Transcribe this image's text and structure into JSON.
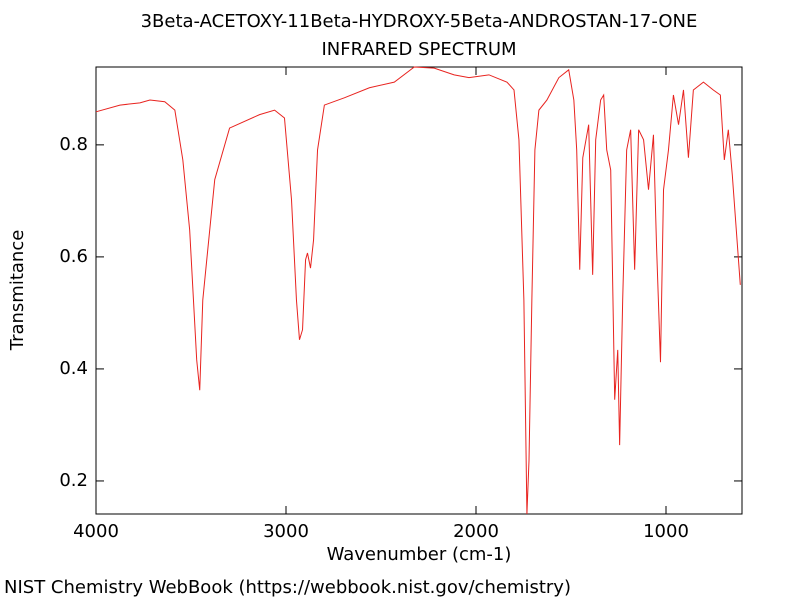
{
  "chart_data": {
    "type": "line",
    "title": "3Beta-ACETOXY-11Beta-HYDROXY-5Beta-ANDROSTAN-17-ONE",
    "subtitle": "INFRARED SPECTRUM",
    "x_label": "Wavenumber (cm-1)",
    "y_label": "Transmitance",
    "xlim": [
      4000,
      600
    ],
    "ylim": [
      0.141,
      0.939
    ],
    "xticks": [
      4000,
      3000,
      2000,
      1000
    ],
    "yticks": [
      0.2,
      0.4,
      0.6,
      0.8
    ],
    "series": [
      {
        "color": "#e8231f",
        "x": [
          4000,
          3874,
          3769,
          3716,
          3638,
          3585,
          3543,
          3507,
          3470,
          3454,
          3438,
          3417,
          3375,
          3297,
          3139,
          3060,
          3008,
          2971,
          2945,
          2929,
          2913,
          2897,
          2887,
          2871,
          2855,
          2834,
          2798,
          2693,
          2561,
          2430,
          2325,
          2220,
          2115,
          2037,
          1932,
          1837,
          1800,
          1774,
          1748,
          1732,
          1721,
          1706,
          1690,
          1669,
          1627,
          1564,
          1512,
          1485,
          1470,
          1454,
          1438,
          1407,
          1386,
          1370,
          1344,
          1328,
          1312,
          1291,
          1270,
          1254,
          1244,
          1228,
          1207,
          1186,
          1165,
          1144,
          1118,
          1092,
          1066,
          1050,
          1029,
          1013,
          987,
          961,
          934,
          908,
          882,
          856,
          803,
          751,
          714,
          693,
          672,
          651,
          609
        ],
        "values": [
          0.859,
          0.871,
          0.875,
          0.88,
          0.877,
          0.862,
          0.773,
          0.648,
          0.416,
          0.362,
          0.523,
          0.595,
          0.738,
          0.83,
          0.854,
          0.862,
          0.848,
          0.702,
          0.523,
          0.452,
          0.47,
          0.595,
          0.607,
          0.58,
          0.63,
          0.791,
          0.871,
          0.884,
          0.902,
          0.912,
          0.939,
          0.937,
          0.925,
          0.92,
          0.925,
          0.912,
          0.898,
          0.809,
          0.523,
          0.141,
          0.237,
          0.523,
          0.791,
          0.862,
          0.88,
          0.92,
          0.934,
          0.88,
          0.791,
          0.577,
          0.777,
          0.836,
          0.568,
          0.809,
          0.88,
          0.889,
          0.791,
          0.755,
          0.345,
          0.434,
          0.264,
          0.523,
          0.791,
          0.827,
          0.577,
          0.827,
          0.809,
          0.72,
          0.818,
          0.621,
          0.412,
          0.72,
          0.791,
          0.889,
          0.836,
          0.898,
          0.777,
          0.898,
          0.912,
          0.898,
          0.889,
          0.773,
          0.827,
          0.746,
          0.55
        ]
      }
    ]
  },
  "footer": "NIST Chemistry WebBook (https://webbook.nist.gov/chemistry)"
}
